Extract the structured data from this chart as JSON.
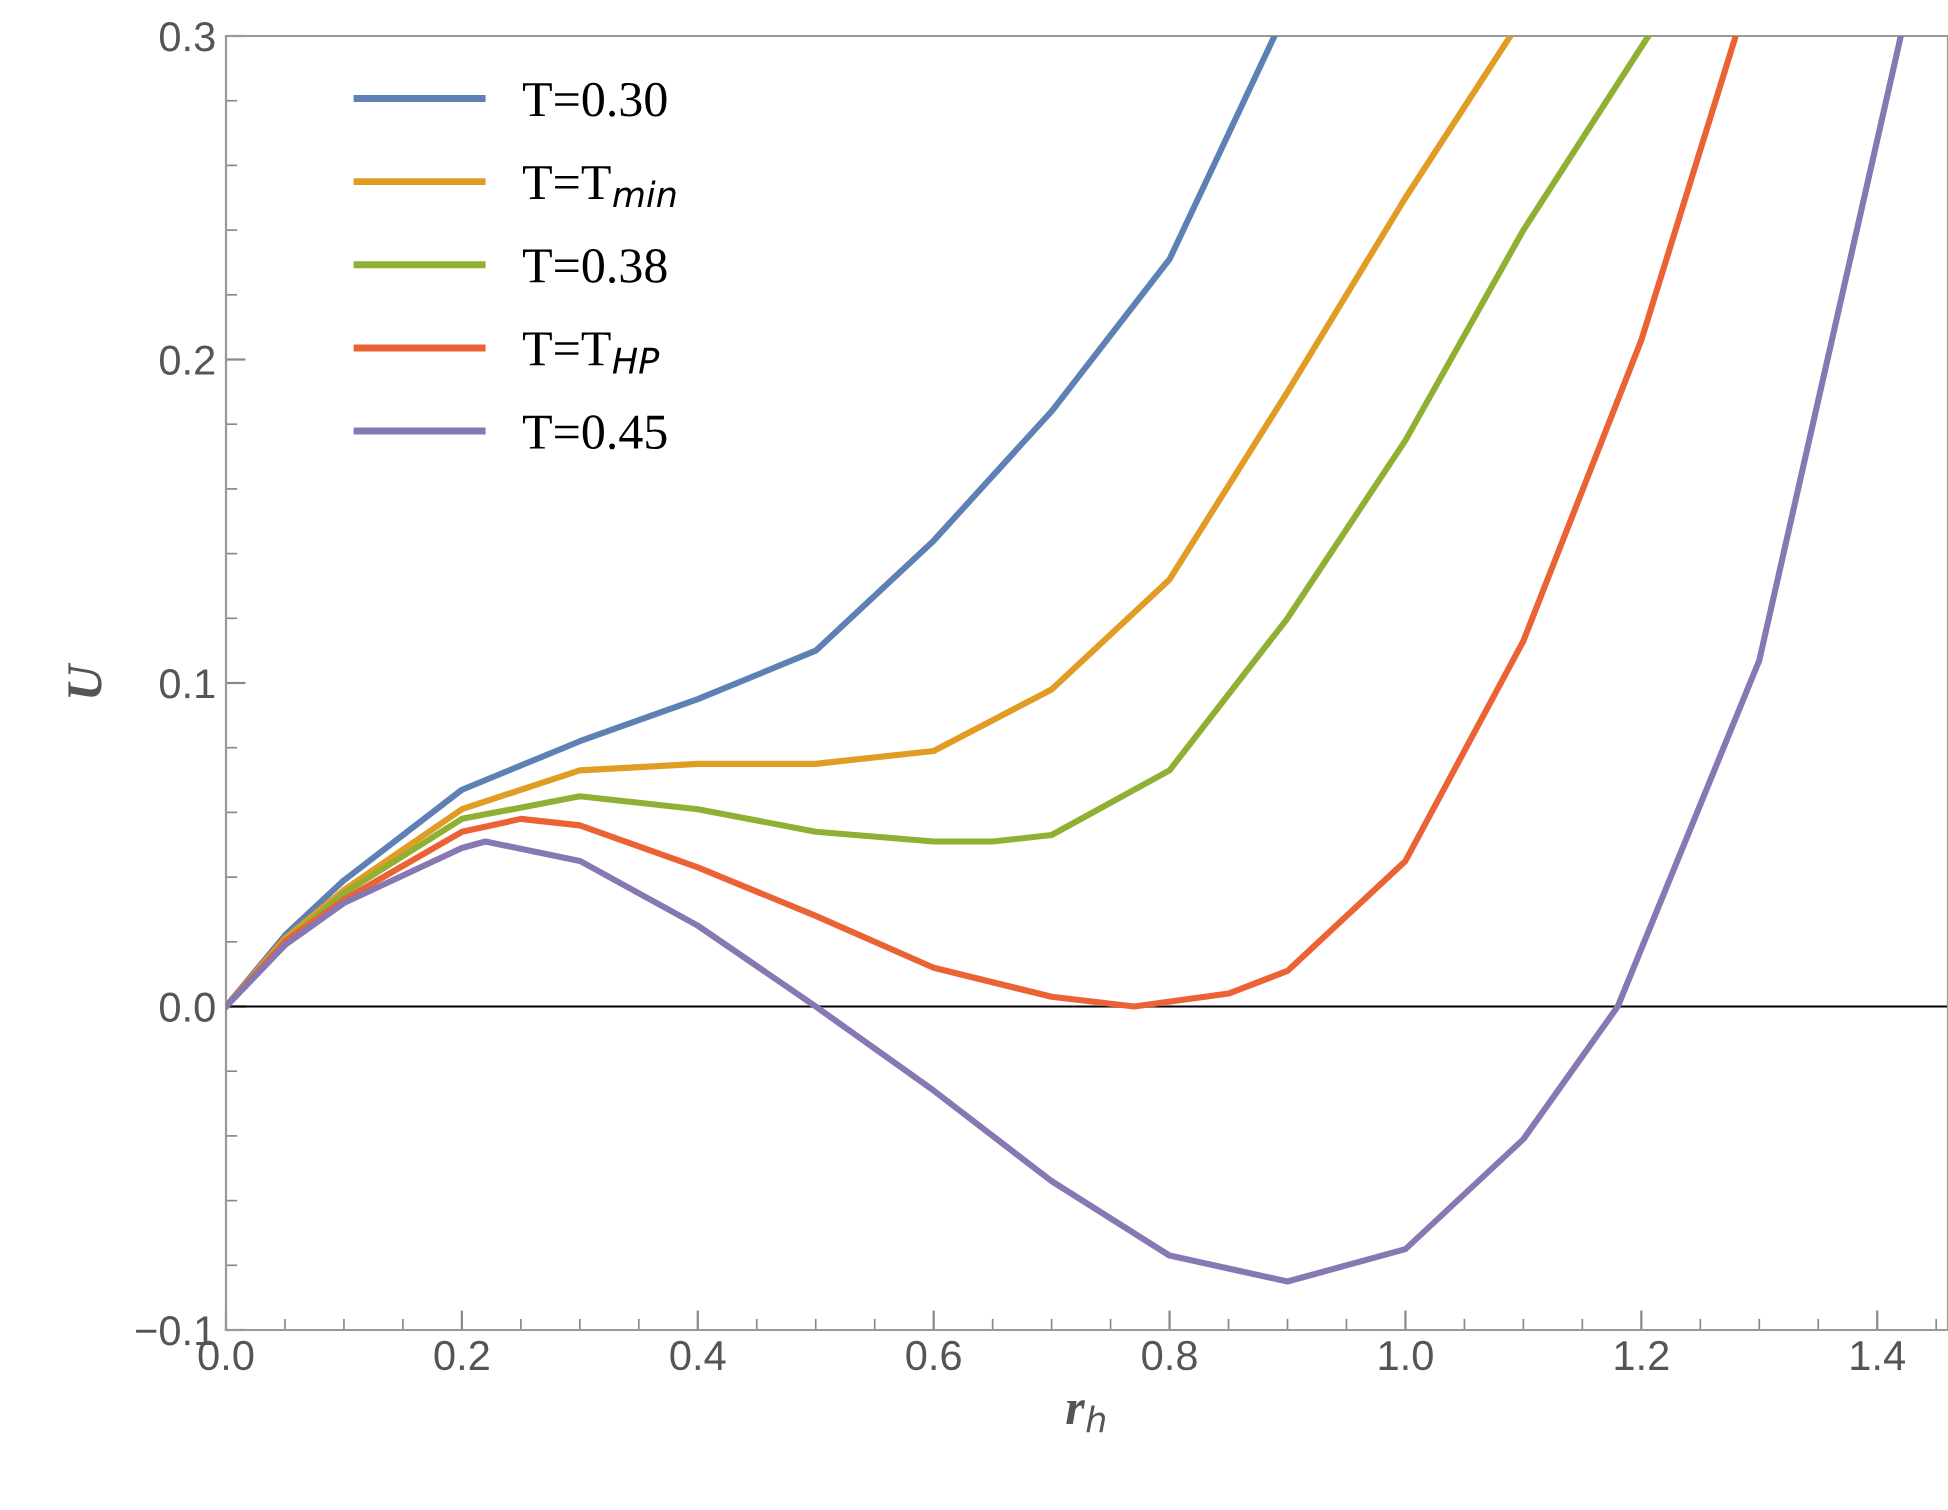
{
  "chart_data": {
    "type": "line",
    "xlabel": "r$_{h}$",
    "ylabel": "U",
    "xlim": [
      0,
      1.46
    ],
    "ylim": [
      -0.1,
      0.3
    ],
    "xticks": [
      {
        "value": 0,
        "label": "0.0"
      },
      0.2,
      0.4,
      0.6,
      0.8,
      {
        "value": 1,
        "label": "1.0"
      },
      1.2,
      1.4
    ],
    "yticks": [
      {
        "value": -0.1,
        "label": "−0.1"
      },
      {
        "value": 0,
        "label": "0.0"
      },
      0.1,
      0.2,
      0.3
    ],
    "ref_lines": [
      {
        "axis": "y",
        "value": 0,
        "color": "#000000"
      }
    ],
    "legend": "top left",
    "grid": false,
    "marker": "none",
    "line_style": "solid",
    "series": [
      {
        "name": "T=0.30",
        "color": "#5e81b5",
        "x": [
          0,
          0.05,
          0.1,
          0.2,
          0.3,
          0.4,
          0.5,
          0.6,
          0.7,
          0.8,
          0.889
        ],
        "values": [
          0,
          0.022,
          0.039,
          0.067,
          0.082,
          0.095,
          0.11,
          0.144,
          0.184,
          0.231,
          0.3
        ]
      },
      {
        "name": "T=T$_{min}$",
        "color": "#e19c24",
        "x": [
          0,
          0.05,
          0.1,
          0.2,
          0.3,
          0.4,
          0.5,
          0.6,
          0.7,
          0.8,
          0.9,
          1.0,
          1.089
        ],
        "values": [
          0,
          0.021,
          0.036,
          0.061,
          0.073,
          0.075,
          0.075,
          0.079,
          0.098,
          0.132,
          0.19,
          0.25,
          0.3
        ]
      },
      {
        "name": "T=0.38",
        "color": "#8fb032",
        "x": [
          0,
          0.05,
          0.1,
          0.2,
          0.3,
          0.4,
          0.5,
          0.6,
          0.65,
          0.7,
          0.8,
          0.9,
          1.0,
          1.1,
          1.206
        ],
        "values": [
          0,
          0.02,
          0.035,
          0.058,
          0.065,
          0.061,
          0.054,
          0.051,
          0.051,
          0.053,
          0.073,
          0.12,
          0.175,
          0.24,
          0.3
        ]
      },
      {
        "name": "T=T$_{HP}$",
        "color": "#eb6235",
        "x": [
          0,
          0.05,
          0.1,
          0.2,
          0.25,
          0.3,
          0.4,
          0.5,
          0.6,
          0.7,
          0.77,
          0.85,
          0.9,
          1.0,
          1.1,
          1.2,
          1.28
        ],
        "values": [
          0,
          0.02,
          0.033,
          0.054,
          0.058,
          0.056,
          0.043,
          0.028,
          0.012,
          0.003,
          0,
          0.004,
          0.011,
          0.045,
          0.113,
          0.206,
          0.3
        ]
      },
      {
        "name": "T=0.45",
        "color": "#8778b3",
        "x": [
          0,
          0.05,
          0.1,
          0.2,
          0.22,
          0.3,
          0.4,
          0.5,
          0.6,
          0.7,
          0.8,
          0.9,
          1.0,
          1.1,
          1.18,
          1.3,
          1.42
        ],
        "values": [
          0,
          0.019,
          0.032,
          0.049,
          0.051,
          0.045,
          0.025,
          0,
          -0.026,
          -0.054,
          -0.077,
          -0.085,
          -0.075,
          -0.041,
          0,
          0.107,
          0.3
        ]
      }
    ]
  }
}
